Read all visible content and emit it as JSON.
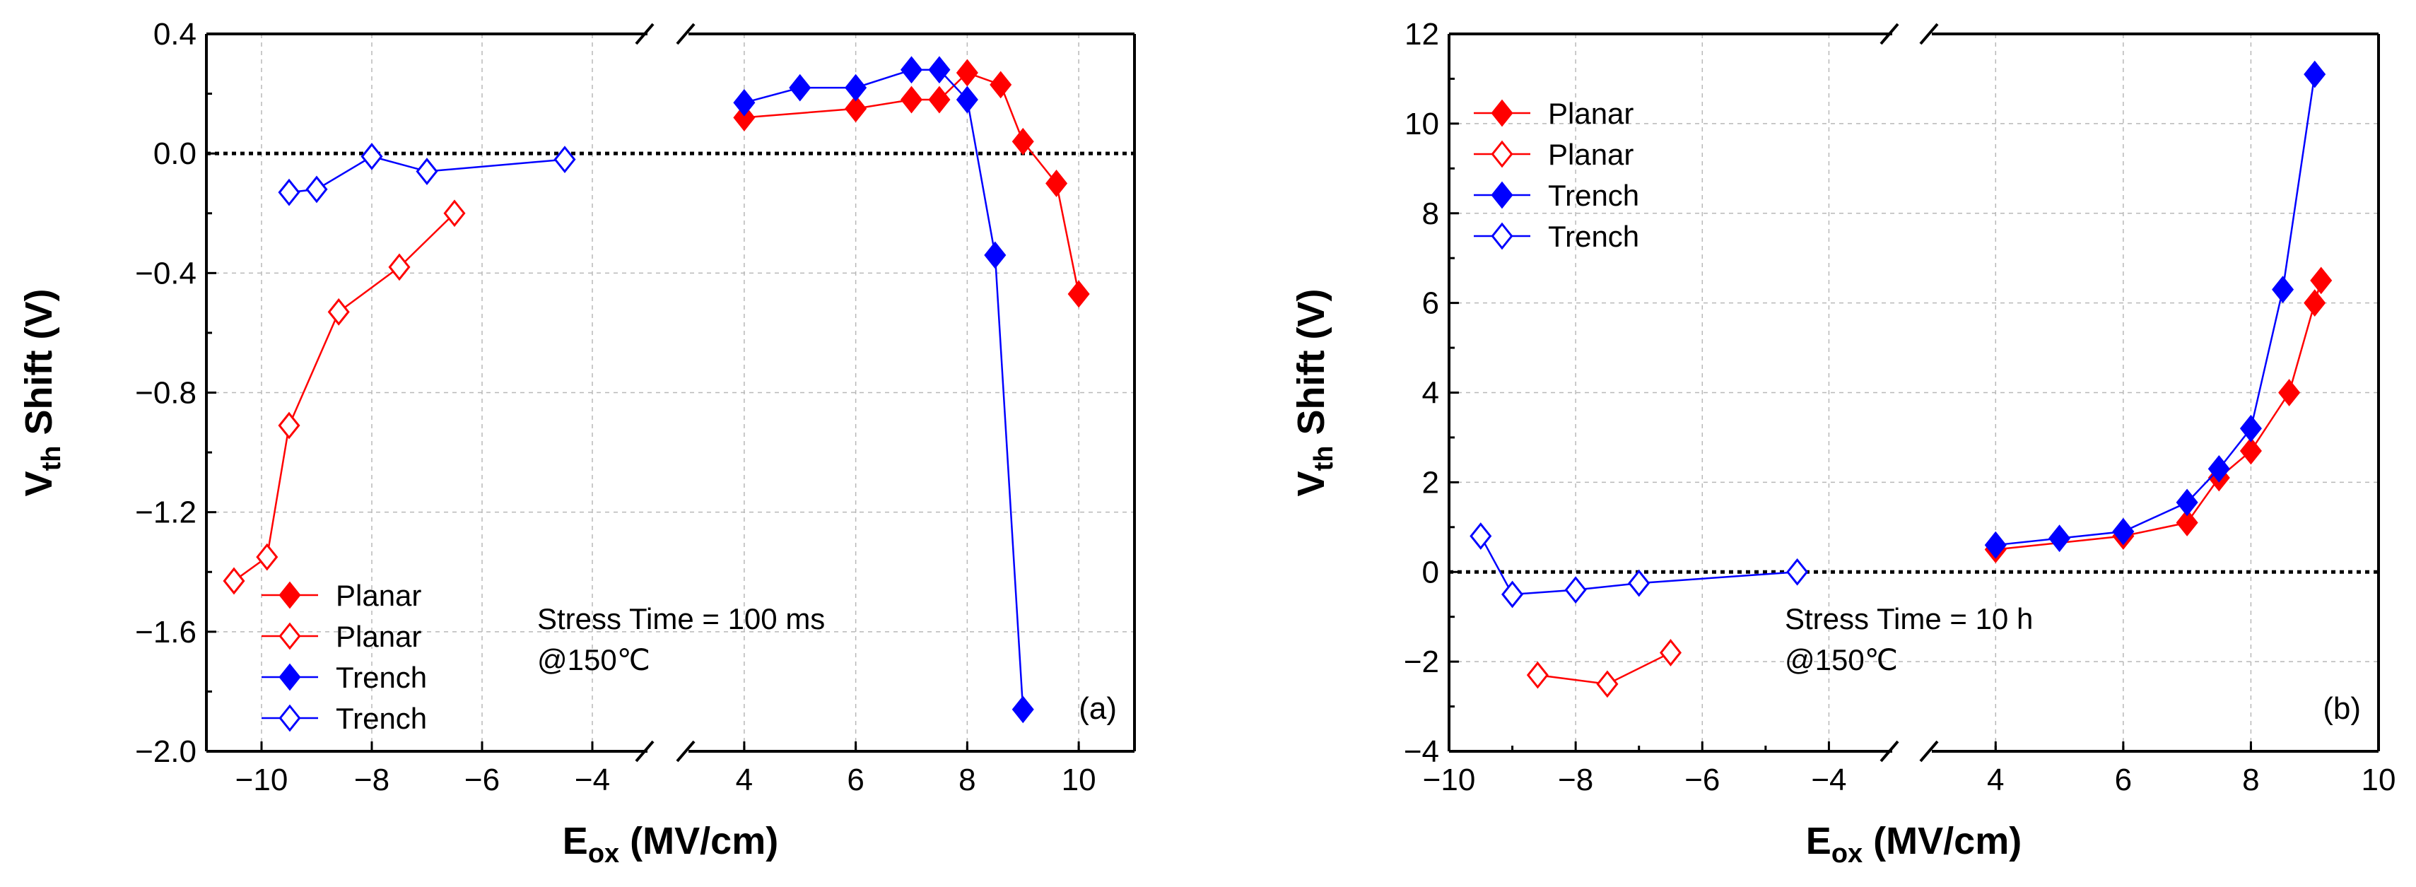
{
  "chart_data": [
    {
      "type": "line",
      "panel_label": "(a)",
      "xlabel_main": "E",
      "xlabel_sub": "ox",
      "xlabel_unit": " (MV/cm)",
      "ylabel_main": "V",
      "ylabel_sub": "th",
      "ylabel_unit": " Shift (V)",
      "broken_x_axis": true,
      "x_segments": [
        {
          "range": [
            -11,
            -3
          ],
          "ticks": [
            -10,
            -8,
            -6,
            -4
          ],
          "tick_labels": [
            "−10",
            "−8",
            "−6",
            "−4"
          ]
        },
        {
          "range": [
            3,
            11
          ],
          "ticks": [
            4,
            6,
            8,
            10
          ],
          "tick_labels": [
            "4",
            "6",
            "8",
            "10"
          ]
        }
      ],
      "ylim": [
        -2.0,
        0.4
      ],
      "yticks": [
        -2.0,
        -1.6,
        -1.2,
        -0.8,
        -0.4,
        0.0,
        0.4
      ],
      "ytick_labels": [
        "−2.0",
        "−1.6",
        "−1.2",
        "−0.8",
        "−0.4",
        "0.0",
        "0.4"
      ],
      "grid": true,
      "reference_line_y": 0,
      "annotations": [
        "Stress Time = 100 ms",
        "@150℃"
      ],
      "legend_location": "lower-left",
      "series": [
        {
          "name": "Planar",
          "color": "#ff0000",
          "marker": "filled-diamond",
          "x": [
            4,
            6,
            7,
            7.5,
            8,
            8.6,
            9,
            9.6,
            10
          ],
          "y": [
            0.12,
            0.15,
            0.18,
            0.18,
            0.27,
            0.23,
            0.04,
            -0.1,
            -0.47
          ]
        },
        {
          "name": "Planar",
          "color": "#ff0000",
          "marker": "open-diamond",
          "x": [
            -10.5,
            -9.9,
            -9.5,
            -8.6,
            -7.5,
            -6.5
          ],
          "y": [
            -1.43,
            -1.35,
            -0.91,
            -0.53,
            -0.38,
            -0.2
          ]
        },
        {
          "name": "Trench",
          "color": "#0000ff",
          "marker": "filled-diamond",
          "x": [
            4,
            5,
            6,
            7,
            7.5,
            8,
            8.5,
            9
          ],
          "y": [
            0.17,
            0.22,
            0.22,
            0.28,
            0.28,
            0.18,
            -0.34,
            -1.86
          ]
        },
        {
          "name": "Trench",
          "color": "#0000ff",
          "marker": "open-diamond",
          "x": [
            -9.5,
            -9,
            -8,
            -7,
            -4.5
          ],
          "y": [
            -0.13,
            -0.12,
            -0.01,
            -0.06,
            -0.02
          ]
        }
      ]
    },
    {
      "type": "line",
      "panel_label": "(b)",
      "xlabel_main": "E",
      "xlabel_sub": "ox",
      "xlabel_unit": " (MV/cm)",
      "ylabel_main": "V",
      "ylabel_sub": "th",
      "ylabel_unit": " Shift (V)",
      "broken_x_axis": true,
      "x_segments": [
        {
          "range": [
            -10,
            -3
          ],
          "ticks": [
            -10,
            -8,
            -6,
            -4
          ],
          "tick_labels": [
            "−10",
            "−8",
            "−6",
            "−4"
          ]
        },
        {
          "range": [
            3,
            10
          ],
          "ticks": [
            4,
            6,
            8,
            10
          ],
          "tick_labels": [
            "4",
            "6",
            "8",
            "10"
          ]
        }
      ],
      "ylim": [
        -4,
        12
      ],
      "yticks": [
        -4,
        -2,
        0,
        2,
        4,
        6,
        8,
        10,
        12
      ],
      "ytick_labels": [
        "−4",
        "−2",
        "0",
        "2",
        "4",
        "6",
        "8",
        "10",
        "12"
      ],
      "grid": true,
      "reference_line_y": 0,
      "annotations": [
        "Stress Time = 10 h",
        "@150℃"
      ],
      "legend_location": "upper-left",
      "series": [
        {
          "name": "Planar",
          "color": "#ff0000",
          "marker": "filled-diamond",
          "x": [
            4,
            6,
            7,
            7.5,
            8,
            8.6,
            9,
            9.1
          ],
          "y": [
            0.5,
            0.8,
            1.1,
            2.1,
            2.7,
            4.0,
            6.0,
            6.5
          ]
        },
        {
          "name": "Planar",
          "color": "#ff0000",
          "marker": "open-diamond",
          "x": [
            -8.6,
            -7.5,
            -6.5
          ],
          "y": [
            -2.3,
            -2.5,
            -1.8
          ]
        },
        {
          "name": "Trench",
          "color": "#0000ff",
          "marker": "filled-diamond",
          "x": [
            4,
            5,
            6,
            7,
            7.5,
            8,
            8.5,
            9
          ],
          "y": [
            0.6,
            0.75,
            0.9,
            1.55,
            2.3,
            3.2,
            6.3,
            11.1
          ]
        },
        {
          "name": "Trench",
          "color": "#0000ff",
          "marker": "open-diamond",
          "x": [
            -9.5,
            -9,
            -8,
            -7,
            -4.5
          ],
          "y": [
            0.8,
            -0.5,
            -0.4,
            -0.25,
            0.0
          ]
        }
      ]
    }
  ]
}
